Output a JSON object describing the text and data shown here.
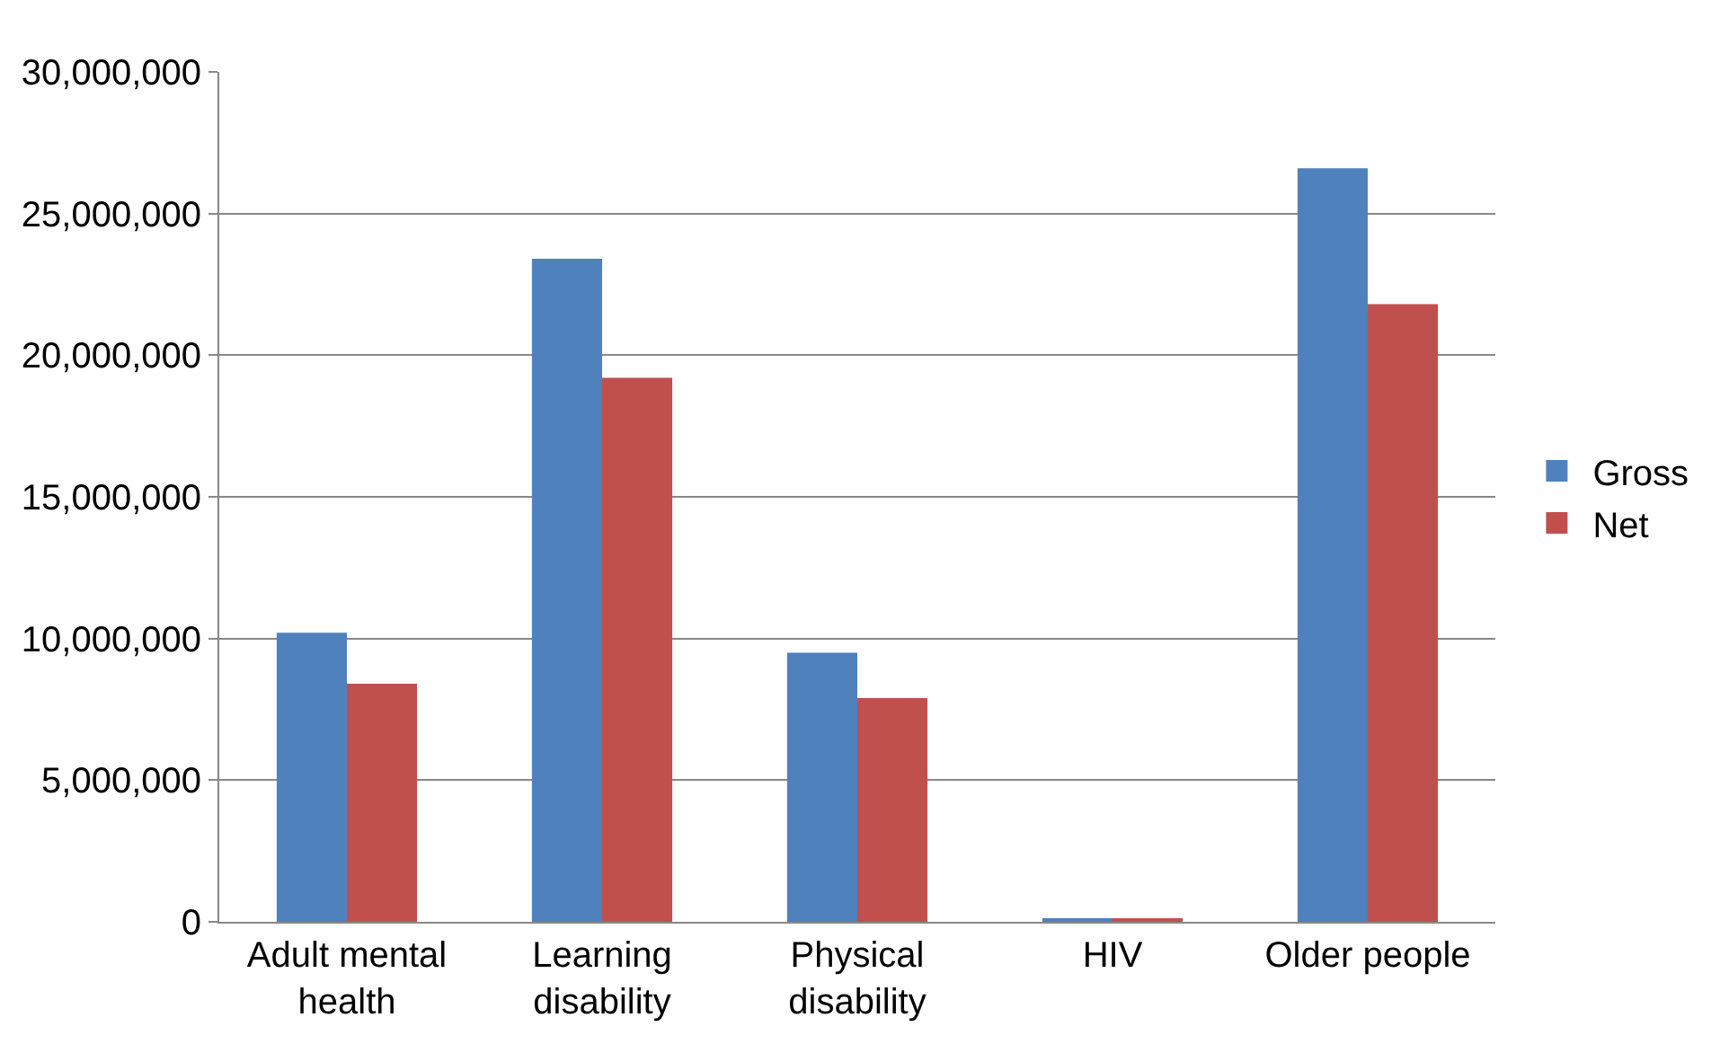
{
  "chart_data": {
    "type": "bar",
    "categories": [
      "Adult mental health",
      "Learning disability",
      "Physical disability",
      "HIV",
      "Older people"
    ],
    "series": [
      {
        "name": "Gross",
        "color": "#4f81bd",
        "values": [
          10200000,
          23400000,
          9500000,
          120000,
          26600000
        ]
      },
      {
        "name": "Net",
        "color": "#c0504d",
        "values": [
          8400000,
          19200000,
          7900000,
          120000,
          21800000
        ]
      }
    ],
    "ylim": [
      0,
      30000000
    ],
    "yticks": [
      {
        "value": 0,
        "label": "0"
      },
      {
        "value": 5000000,
        "label": "5,000,000"
      },
      {
        "value": 10000000,
        "label": "10,000,000"
      },
      {
        "value": 15000000,
        "label": "15,000,000"
      },
      {
        "value": 20000000,
        "label": "20,000,000"
      },
      {
        "value": 25000000,
        "label": "25,000,000"
      },
      {
        "value": 30000000,
        "label": "30,000,000"
      }
    ],
    "grid": "y",
    "legend": "right"
  }
}
